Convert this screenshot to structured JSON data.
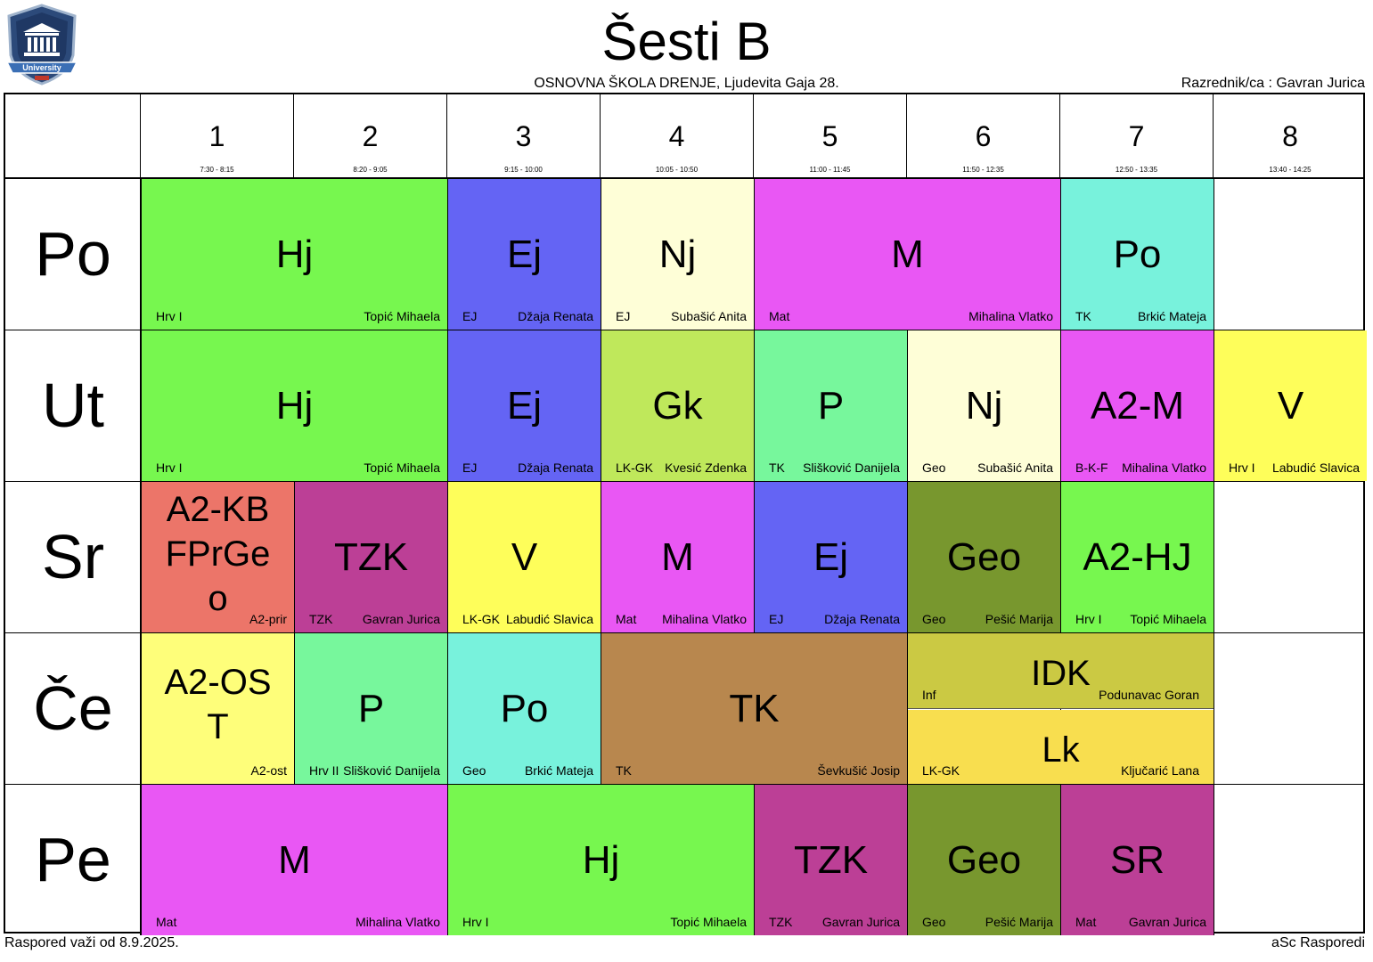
{
  "title": "Šesti B",
  "school": "OSNOVNA ŠKOLA  DRENJE, Ljudevita Gaja 28.",
  "class_teacher": "Razrednik/ca : Gavran Jurica",
  "logo_text": "University",
  "footer_left": "Raspored važi od 8.9.2025.",
  "footer_right": "aSc Rasporedi",
  "periods": [
    {
      "num": "1",
      "time": "7:30 - 8:15"
    },
    {
      "num": "2",
      "time": "8:20 - 9:05"
    },
    {
      "num": "3",
      "time": "9:15 - 10:00"
    },
    {
      "num": "4",
      "time": "10:05 - 10:50"
    },
    {
      "num": "5",
      "time": "11:00 - 11:45"
    },
    {
      "num": "6",
      "time": "11:50 - 12:35"
    },
    {
      "num": "7",
      "time": "12:50 - 13:35"
    },
    {
      "num": "8",
      "time": "13:40 - 14:25"
    }
  ],
  "days": [
    "Po",
    "Ut",
    "Sr",
    "Če",
    "Pe"
  ],
  "lessons": [
    {
      "day": 0,
      "start": 0,
      "span": 2,
      "subject": "Hj",
      "group": "Hrv I",
      "teacher": "Topić Mihaela",
      "color": "#77f74f"
    },
    {
      "day": 0,
      "start": 2,
      "span": 1,
      "subject": "Ej",
      "group": "EJ",
      "teacher": "Džaja Renata",
      "color": "#6464f4"
    },
    {
      "day": 0,
      "start": 3,
      "span": 1,
      "subject": "Nj",
      "group": "EJ",
      "teacher": "Subašić Anita",
      "color": "#fefed7"
    },
    {
      "day": 0,
      "start": 4,
      "span": 2,
      "subject": "M",
      "group": "Mat",
      "teacher": "Mihalina Vlatko",
      "color": "#e957f4"
    },
    {
      "day": 0,
      "start": 6,
      "span": 1,
      "subject": "Po",
      "group": "TK",
      "teacher": "Brkić Mateja",
      "color": "#78f2dc"
    },
    {
      "day": 1,
      "start": 0,
      "span": 2,
      "subject": "Hj",
      "group": "Hrv I",
      "teacher": "Topić Mihaela",
      "color": "#77f74f"
    },
    {
      "day": 1,
      "start": 2,
      "span": 1,
      "subject": "Ej",
      "group": "EJ",
      "teacher": "Džaja Renata",
      "color": "#6464f4"
    },
    {
      "day": 1,
      "start": 3,
      "span": 1,
      "subject": "Gk",
      "group": "LK-GK",
      "teacher": "Kvesić Zdenka",
      "color": "#bfe85b"
    },
    {
      "day": 1,
      "start": 4,
      "span": 1,
      "subject": "P",
      "group": "TK",
      "teacher": "Slišković Danijela",
      "color": "#77f79c"
    },
    {
      "day": 1,
      "start": 5,
      "span": 1,
      "subject": "Nj",
      "group": "Geo",
      "teacher": "Subašić Anita",
      "color": "#fefed7"
    },
    {
      "day": 1,
      "start": 6,
      "span": 1,
      "subject": "A2-M",
      "group": "B-K-F",
      "teacher": "Mihalina Vlatko",
      "color": "#e957f4"
    },
    {
      "day": 1,
      "start": 7,
      "span": 1,
      "subject": "V",
      "group": "Hrv I",
      "teacher": "Labudić Slavica",
      "color": "#fefe5a"
    },
    {
      "day": 2,
      "start": 0,
      "span": 1,
      "subject": "A2-KBFPrGeo",
      "subject_lines": [
        "A2-KB",
        "FPrGe",
        "o"
      ],
      "group": "",
      "teacher": "A2-prir",
      "color": "#ec7569"
    },
    {
      "day": 2,
      "start": 1,
      "span": 1,
      "subject": "TZK",
      "group": "TZK",
      "teacher": "Gavran Jurica",
      "color": "#bc3f96"
    },
    {
      "day": 2,
      "start": 2,
      "span": 1,
      "subject": "V",
      "group": "LK-GK",
      "teacher": "Labudić Slavica",
      "color": "#fefe5a"
    },
    {
      "day": 2,
      "start": 3,
      "span": 1,
      "subject": "M",
      "group": "Mat",
      "teacher": "Mihalina Vlatko",
      "color": "#e957f4"
    },
    {
      "day": 2,
      "start": 4,
      "span": 1,
      "subject": "Ej",
      "group": "EJ",
      "teacher": "Džaja Renata",
      "color": "#6464f4"
    },
    {
      "day": 2,
      "start": 5,
      "span": 1,
      "subject": "Geo",
      "group": "Geo",
      "teacher": "Pešić Marija",
      "color": "#78972e"
    },
    {
      "day": 2,
      "start": 6,
      "span": 1,
      "subject": "A2-HJ",
      "group": "Hrv I",
      "teacher": "Topić Mihaela",
      "color": "#77f74f"
    },
    {
      "day": 3,
      "start": 0,
      "span": 1,
      "subject": "A2-OST",
      "subject_lines": [
        "A2-OS",
        "T"
      ],
      "group": "",
      "teacher": "A2-ost",
      "color": "#fefe7a"
    },
    {
      "day": 3,
      "start": 1,
      "span": 1,
      "subject": "P",
      "group": "Hrv II",
      "teacher": "Slišković Danijela",
      "color": "#77f79c"
    },
    {
      "day": 3,
      "start": 2,
      "span": 1,
      "subject": "Po",
      "group": "Geo",
      "teacher": "Brkić Mateja",
      "color": "#78f2dc"
    },
    {
      "day": 3,
      "start": 3,
      "span": 2,
      "subject": "TK",
      "group": "TK",
      "teacher": "Ševkušić Josip",
      "color": "#b8874e"
    },
    {
      "day": 3,
      "start": 5,
      "span": 2,
      "half": "top",
      "subject": "IDK",
      "group": "Inf",
      "teacher": "Podunavac Goran",
      "color": "#cbc943"
    },
    {
      "day": 3,
      "start": 5,
      "span": 2,
      "half": "bottom",
      "subject": "Lk",
      "group": "LK-GK",
      "teacher": "Ključarić Lana",
      "color": "#f8de4f"
    },
    {
      "day": 4,
      "start": 0,
      "span": 2,
      "subject": "M",
      "group": "Mat",
      "teacher": "Mihalina Vlatko",
      "color": "#e957f4"
    },
    {
      "day": 4,
      "start": 2,
      "span": 2,
      "subject": "Hj",
      "group": "Hrv I",
      "teacher": "Topić Mihaela",
      "color": "#77f74f"
    },
    {
      "day": 4,
      "start": 4,
      "span": 1,
      "subject": "TZK",
      "group": "TZK",
      "teacher": "Gavran Jurica",
      "color": "#bc3f96"
    },
    {
      "day": 4,
      "start": 5,
      "span": 1,
      "subject": "Geo",
      "group": "Geo",
      "teacher": "Pešić Marija",
      "color": "#78972e"
    },
    {
      "day": 4,
      "start": 6,
      "span": 1,
      "subject": "SR",
      "group": "Mat",
      "teacher": "Gavran Jurica",
      "color": "#bc3f96"
    }
  ]
}
